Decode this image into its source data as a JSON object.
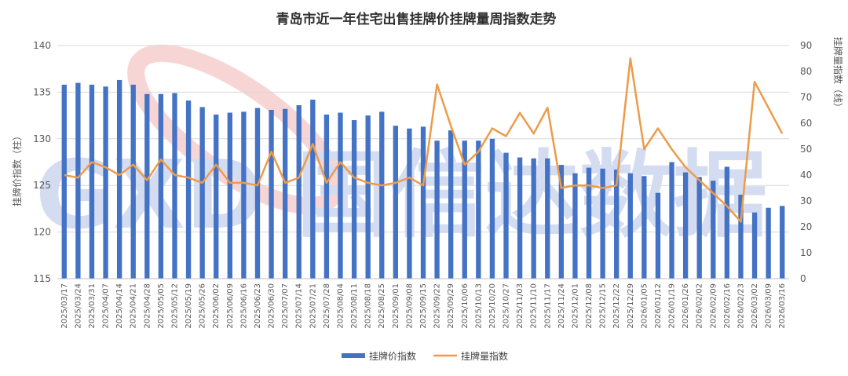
{
  "chart_data": {
    "type": "bar+line",
    "title": "青岛市近一年住宅出售挂牌价挂牌量周指数走势",
    "ylabel_left": "挂牌价指数（柱）",
    "ylabel_right": "挂牌量指数（线）",
    "ylim_left": [
      115,
      140
    ],
    "yticks_left": [
      "115",
      "120",
      "125",
      "130",
      "135",
      "140"
    ],
    "ylim_right": [
      0,
      90
    ],
    "yticks_right": [
      "0",
      "10",
      "20",
      "30",
      "40",
      "50",
      "60",
      "70",
      "80",
      "90"
    ],
    "grid": true,
    "legend_position": "bottom",
    "categories": [
      "2025/03/17",
      "2025/03/24",
      "2025/03/31",
      "2025/04/07",
      "2025/04/14",
      "2025/04/21",
      "2025/04/28",
      "2025/05/05",
      "2025/05/12",
      "2025/05/19",
      "2025/05/26",
      "2025/06/02",
      "2025/06/09",
      "2025/06/16",
      "2025/06/23",
      "2025/06/30",
      "2025/07/07",
      "2025/07/14",
      "2025/07/21",
      "2025/07/28",
      "2025/08/04",
      "2025/08/11",
      "2025/08/18",
      "2025/08/25",
      "2025/09/01",
      "2025/09/08",
      "2025/09/15",
      "2025/09/22",
      "2025/09/29",
      "2025/10/06",
      "2025/10/13",
      "2025/10/20",
      "2025/10/27",
      "2025/11/03",
      "2025/11/10",
      "2025/11/17",
      "2025/11/24",
      "2025/12/01",
      "2025/12/08",
      "2025/12/15",
      "2025/12/22",
      "2025/12/29",
      "2026/01/05",
      "2026/01/12",
      "2026/01/19",
      "2026/01/26",
      "2026/02/02",
      "2026/02/09",
      "2026/02/16",
      "2026/02/23",
      "2026/03/02",
      "2026/03/09",
      "2026/03/16"
    ],
    "series": [
      {
        "name": "挂牌价指数",
        "type": "bar",
        "axis": "left",
        "color": "#4472c4",
        "values": [
          135.8,
          136.0,
          135.8,
          135.6,
          136.3,
          135.8,
          134.8,
          134.8,
          134.9,
          134.1,
          133.4,
          132.6,
          132.8,
          132.9,
          133.3,
          133.1,
          133.2,
          133.6,
          134.2,
          132.6,
          132.8,
          132.0,
          132.5,
          132.9,
          131.4,
          131.1,
          131.3,
          129.8,
          130.9,
          129.8,
          129.8,
          130.0,
          128.5,
          128.0,
          127.9,
          127.9,
          127.2,
          126.3,
          126.9,
          126.8,
          126.7,
          126.3,
          126.0,
          124.2,
          127.5,
          126.4,
          125.9,
          125.5,
          127.0,
          124.0,
          122.1,
          122.6,
          122.8
        ]
      },
      {
        "name": "挂牌量指数",
        "type": "line",
        "axis": "right",
        "color": "#ed9b49",
        "values": [
          40,
          39,
          45,
          43,
          40,
          44,
          38,
          46,
          40,
          39,
          37,
          44,
          37,
          37,
          36,
          49,
          37,
          39,
          52,
          37,
          45,
          39,
          37,
          36,
          37,
          39,
          36,
          75,
          59,
          44,
          49,
          58,
          55,
          64,
          56,
          66,
          35,
          36,
          36,
          35,
          36,
          85,
          50,
          58,
          50,
          43,
          38,
          33,
          28,
          22,
          76,
          66,
          56
        ]
      }
    ]
  },
  "watermark": "GXD 国信达数据"
}
